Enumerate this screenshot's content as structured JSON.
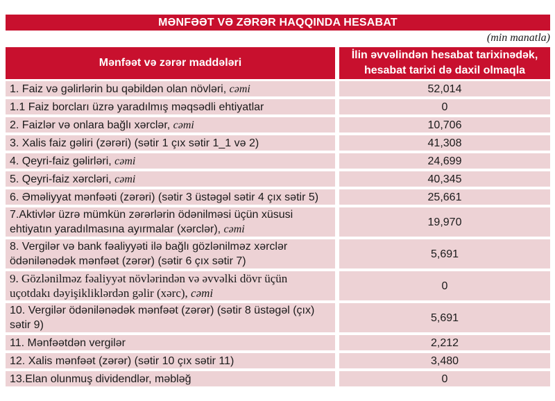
{
  "title": "MƏNFƏƏT VƏ ZƏRƏR HAQQINDA HESABAT",
  "unit_note": "(min manatla)",
  "colors": {
    "accent_red": "#C8102E",
    "row_pink": "#EDD2D5",
    "header_text_white": "#FFFFFF",
    "body_text": "#1A1A1A"
  },
  "table": {
    "col1_header": "Mənfəət və zərər maddələri",
    "col2_header": "İlin əvvəlindən hesabat tarixinədək, hesabat tarixi də daxil olmaqla",
    "rows": [
      {
        "label": "1. Faiz və gəlirlərin bu qəbildən olan növləri, ",
        "suffix": "cəmi",
        "value": "52,014",
        "serif": false
      },
      {
        "label": "1.1 Faiz borcları üzrə yaradılmış məqsədli ehtiyatlar",
        "suffix": "",
        "value": "0",
        "serif": false
      },
      {
        "label": "2. Faizlər və onlara bağlı xərclər, ",
        "suffix": "cəmi",
        "value": "10,706",
        "serif": false
      },
      {
        "label": "3. Xalis faiz gəliri (zərəri) (sətir 1 çıx sətir 1_1 və 2)",
        "suffix": "",
        "value": "41,308",
        "serif": false
      },
      {
        "label": "4. Qeyri-faiz gəlirləri, ",
        "suffix": "cəmi",
        "value": "24,699",
        "serif": false
      },
      {
        "label": "5. Qeyri-faiz xərcləri, ",
        "suffix": "cəmi",
        "value": "40,345",
        "serif": false
      },
      {
        "label": "6. Əməliyyat mənfəəti (zərəri) (sətir 3 üstəgəl sətir 4 çıx sətir 5)",
        "suffix": "",
        "value": "25,661",
        "serif": false
      },
      {
        "label": "7.Aktivlər üzrə mümkün zərərlərin ödənilməsi üçün xüsusi ehtiyatın yaradılmasına ayırmalar (xərclər), ",
        "suffix": "cəmi",
        "value": "19,970",
        "serif": false
      },
      {
        "label": "8. Vergilər və bank fəaliyyəti ilə bağlı gözlənilməz xərclər ödənilənədək mənfəət (zərər) (sətir 6 çıx sətir 7)",
        "suffix": "",
        "value": "5,691",
        "serif": false
      },
      {
        "label": "9. Gözlənilməz fəaliyyət növlərindən və əvvəlki dövr üçün uçotdakı dəyişikliklərdən gəlir (xərc), ",
        "suffix": "cəmi",
        "value": "0",
        "serif": true
      },
      {
        "label": "10. Vergilər ödənilənədək mənfəət (zərər) (sətir 8 üstəgəl (çıx) sətir 9)",
        "suffix": "",
        "value": "5,691",
        "serif": false
      },
      {
        "label": "11. Mənfəətdən vergilər",
        "suffix": "",
        "value": "2,212",
        "serif": false
      },
      {
        "label": "12. Xalis mənfəət (zərər) (sətir 10 çıx sətir 11)",
        "suffix": "",
        "value": "3,480",
        "serif": false
      },
      {
        "label": "13.Elan olunmuş dividendlər, məbləğ",
        "suffix": "",
        "value": "0",
        "serif": false
      }
    ]
  }
}
